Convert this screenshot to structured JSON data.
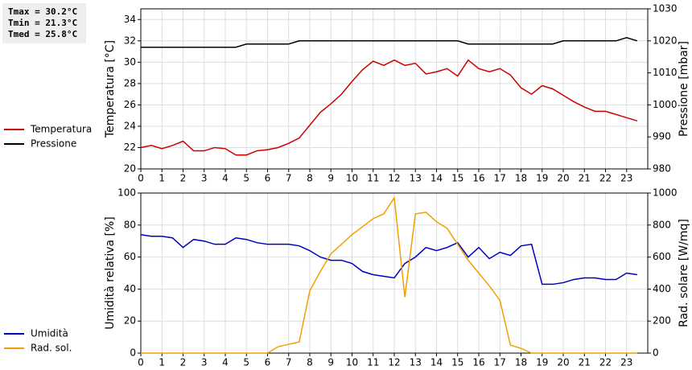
{
  "chart_data": [
    {
      "type": "line",
      "annotations": [
        "Tmax = 30.2°C",
        "Tmin = 21.3°C",
        "Tmed = 25.8°C"
      ],
      "ylabel": "Temperatura [°C]",
      "y2label": "Pressione [mbar]",
      "x": [
        0,
        0.5,
        1,
        1.5,
        2,
        2.5,
        3,
        3.5,
        4,
        4.5,
        5,
        5.5,
        6,
        6.5,
        7,
        7.5,
        8,
        8.5,
        9,
        9.5,
        10,
        10.5,
        11,
        11.5,
        12,
        12.5,
        13,
        13.5,
        14,
        14.5,
        15,
        15.5,
        16,
        16.5,
        17,
        17.5,
        18,
        18.5,
        19,
        19.5,
        20,
        20.5,
        21,
        21.5,
        22,
        22.5,
        23,
        23.5
      ],
      "xlim": [
        0,
        24
      ],
      "xticks": [
        0,
        1,
        2,
        3,
        4,
        5,
        6,
        7,
        8,
        9,
        10,
        11,
        12,
        13,
        14,
        15,
        16,
        17,
        18,
        19,
        20,
        21,
        22,
        23
      ],
      "ylim": [
        20,
        35
      ],
      "yticks": [
        20,
        22,
        24,
        26,
        28,
        30,
        32,
        34
      ],
      "y2lim": [
        980,
        1030
      ],
      "y2ticks": [
        980,
        990,
        1000,
        1010,
        1020,
        1030
      ],
      "grid": true,
      "series": [
        {
          "name": "Temperatura",
          "color": "#cc0000",
          "values": [
            22.0,
            22.2,
            21.9,
            22.2,
            22.6,
            21.7,
            21.7,
            22.0,
            21.9,
            21.3,
            21.3,
            21.7,
            21.8,
            22.0,
            22.4,
            22.9,
            24.1,
            25.3,
            26.1,
            27.0,
            28.2,
            29.3,
            30.1,
            29.7,
            30.2,
            29.7,
            29.9,
            28.9,
            29.1,
            29.4,
            28.7,
            30.2,
            29.4,
            29.1,
            29.4,
            28.8,
            27.6,
            27.0,
            27.8,
            27.5,
            26.9,
            26.3,
            25.8,
            25.4,
            25.4,
            25.1,
            24.8,
            24.5
          ]
        },
        {
          "name": "Pressione",
          "color": "#000000",
          "axis": "y2",
          "values": [
            1018,
            1018,
            1018,
            1018,
            1018,
            1018,
            1018,
            1018,
            1018,
            1018,
            1019,
            1019,
            1019,
            1019,
            1019,
            1020,
            1020,
            1020,
            1020,
            1020,
            1020,
            1020,
            1020,
            1020,
            1020,
            1020,
            1020,
            1020,
            1020,
            1020,
            1020,
            1019,
            1019,
            1019,
            1019,
            1019,
            1019,
            1019,
            1019,
            1019,
            1020,
            1020,
            1020,
            1020,
            1020,
            1020,
            1021,
            1020
          ]
        }
      ]
    },
    {
      "type": "line",
      "ylabel": "Umidità relativa [%]",
      "y2label": "Rad. solare [W/mq]",
      "x": [
        0,
        0.5,
        1,
        1.5,
        2,
        2.5,
        3,
        3.5,
        4,
        4.5,
        5,
        5.5,
        6,
        6.5,
        7,
        7.5,
        8,
        8.5,
        9,
        9.5,
        10,
        10.5,
        11,
        11.5,
        12,
        12.5,
        13,
        13.5,
        14,
        14.5,
        15,
        15.5,
        16,
        16.5,
        17,
        17.5,
        18,
        18.5,
        19,
        19.5,
        20,
        20.5,
        21,
        21.5,
        22,
        22.5,
        23,
        23.5
      ],
      "xlim": [
        0,
        24
      ],
      "xticks": [
        0,
        1,
        2,
        3,
        4,
        5,
        6,
        7,
        8,
        9,
        10,
        11,
        12,
        13,
        14,
        15,
        16,
        17,
        18,
        19,
        20,
        21,
        22,
        23
      ],
      "ylim": [
        0,
        100
      ],
      "yticks": [
        0,
        20,
        40,
        60,
        80,
        100
      ],
      "y2lim": [
        0,
        1000
      ],
      "y2ticks": [
        0,
        200,
        400,
        600,
        800,
        1000
      ],
      "grid": true,
      "series": [
        {
          "name": "Umidità",
          "color": "#0000c0",
          "values": [
            74,
            73,
            73,
            72,
            66,
            71,
            70,
            68,
            68,
            72,
            71,
            69,
            68,
            68,
            68,
            67,
            64,
            60,
            58,
            58,
            56,
            51,
            49,
            48,
            47,
            56,
            60,
            66,
            64,
            66,
            69,
            60,
            66,
            59,
            63,
            61,
            67,
            68,
            43,
            43,
            44,
            46,
            47,
            47,
            46,
            46,
            50,
            49
          ]
        },
        {
          "name": "Rad. sol.",
          "color": "#f0a000",
          "axis": "y2",
          "values": [
            0,
            0,
            0,
            0,
            0,
            0,
            0,
            0,
            0,
            0,
            0,
            0,
            0,
            40,
            55,
            70,
            390,
            510,
            620,
            680,
            740,
            790,
            840,
            870,
            970,
            350,
            870,
            880,
            820,
            780,
            680,
            580,
            500,
            420,
            330,
            50,
            30,
            0,
            0,
            0,
            0,
            0,
            0,
            0,
            0,
            0,
            0,
            0
          ]
        }
      ]
    }
  ]
}
